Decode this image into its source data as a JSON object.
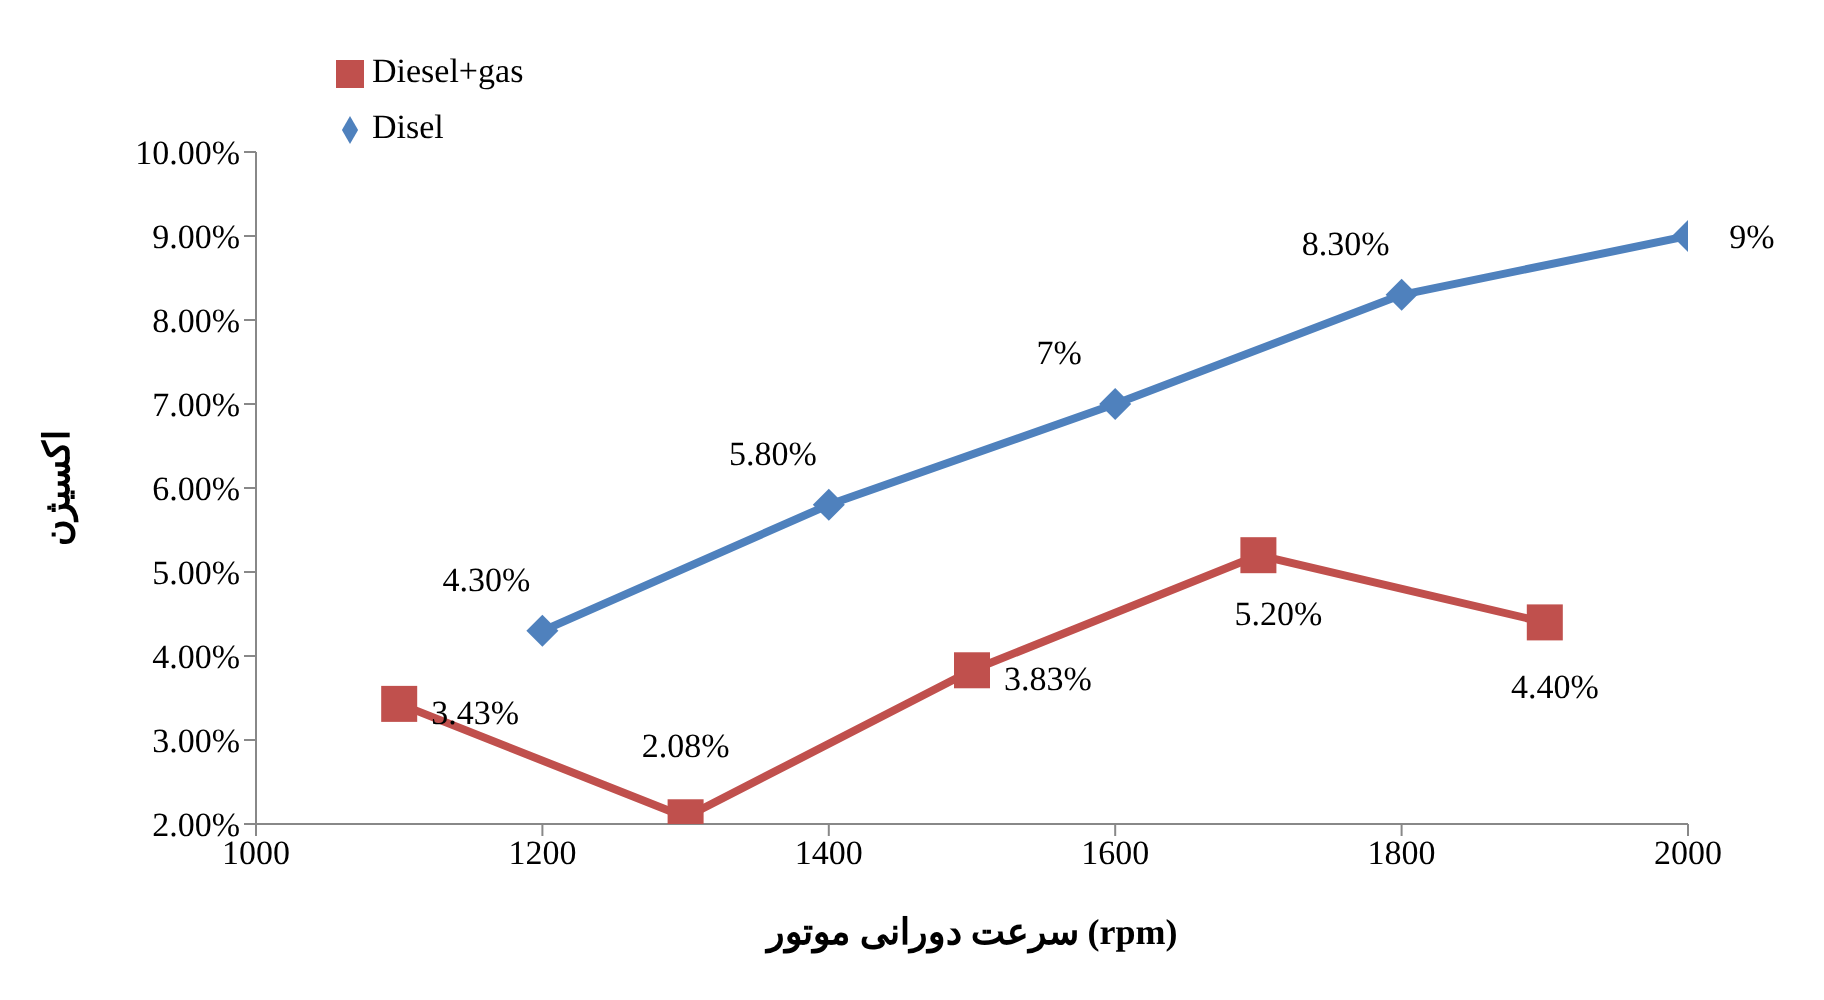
{
  "chart_data": {
    "type": "line",
    "xlabel": "سرعت دورانی موتور (rpm)",
    "ylabel": "اکسیژن",
    "xlim": [
      1000,
      2000
    ],
    "xticks": [
      1000,
      1200,
      1400,
      1600,
      1800,
      2000
    ],
    "ylim": [
      2,
      10
    ],
    "yticks": [
      {
        "value": 2,
        "label": "2.00%"
      },
      {
        "value": 3,
        "label": "3.00%"
      },
      {
        "value": 4,
        "label": "4.00%"
      },
      {
        "value": 5,
        "label": "5.00%"
      },
      {
        "value": 6,
        "label": "6.00%"
      },
      {
        "value": 7,
        "label": "7.00%"
      },
      {
        "value": 8,
        "label": "8.00%"
      },
      {
        "value": 9,
        "label": "9.00%"
      },
      {
        "value": 10,
        "label": "10.00%"
      }
    ],
    "grid": false,
    "legend": "top left",
    "line_style": "solid",
    "series": [
      {
        "name": "Diesel+gas",
        "color": "#c0504d",
        "marker": "square",
        "x": [
          1100,
          1300,
          1500,
          1700,
          1900
        ],
        "values": [
          3.43,
          2.08,
          3.83,
          5.2,
          4.4
        ],
        "value_labels": [
          "3.43%",
          "2.08%",
          "3.83%",
          "5.20%",
          "4.40%"
        ]
      },
      {
        "name": "Disel",
        "color": "#4f81bd",
        "marker": "diamond",
        "x": [
          1200,
          1400,
          1600,
          1800,
          2000
        ],
        "values": [
          4.3,
          5.8,
          7,
          8.3,
          9
        ],
        "value_labels": [
          "4.30%",
          "5.80%",
          "7%",
          "8.30%",
          "9%"
        ]
      }
    ]
  }
}
